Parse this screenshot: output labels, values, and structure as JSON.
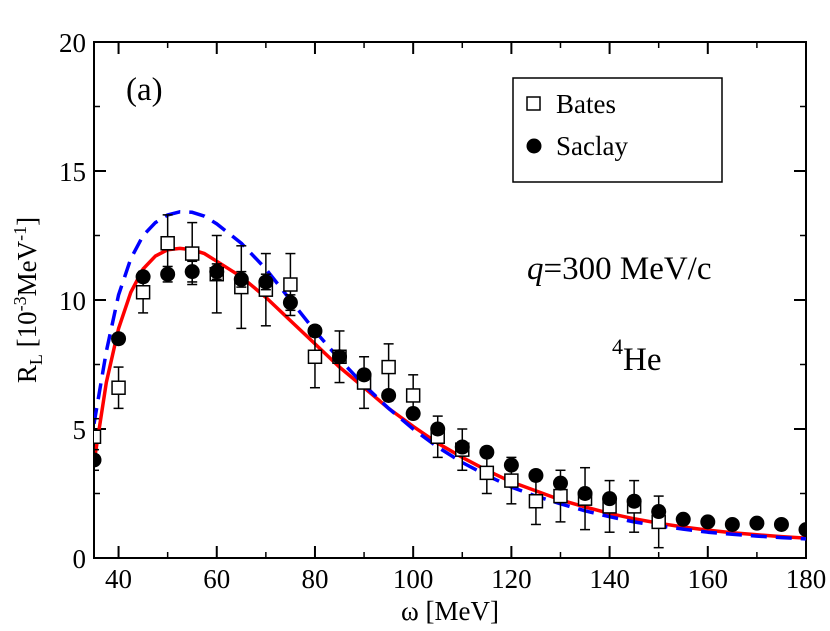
{
  "chart_data": {
    "type": "scatter",
    "panel_label": "(a)",
    "xlabel": "ω  [MeV]",
    "ylabel": {
      "base": "R",
      "sub": "L",
      "unit_open": " [10",
      "exp1": "-3",
      "unit_mid": "MeV",
      "exp2": "-1",
      "unit_close": "]"
    },
    "xlim": [
      35,
      180
    ],
    "ylim": [
      0,
      20
    ],
    "xticks": [
      40,
      60,
      80,
      100,
      120,
      140,
      160,
      180
    ],
    "yticks": [
      0,
      5,
      10,
      15,
      20
    ],
    "legend_position": "top-right",
    "annotations": {
      "q_italic": "q",
      "q_rest": "=300 MeV/c",
      "nucleus_mass": "4",
      "nucleus_symbol": "He"
    },
    "series": [
      {
        "name": "Bates",
        "marker": "open-square",
        "color": "#000000",
        "points": [
          {
            "x": 35,
            "y": 4.7,
            "err": 0.7
          },
          {
            "x": 40,
            "y": 6.6,
            "err": 0.8
          },
          {
            "x": 45,
            "y": 10.3,
            "err": 0.8
          },
          {
            "x": 50,
            "y": 12.2,
            "err": 1.1
          },
          {
            "x": 55,
            "y": 11.8,
            "err": 1.2
          },
          {
            "x": 60,
            "y": 11.0,
            "err": 1.5
          },
          {
            "x": 65,
            "y": 10.5,
            "err": 1.6
          },
          {
            "x": 70,
            "y": 10.4,
            "err": 1.4
          },
          {
            "x": 75,
            "y": 10.6,
            "err": 1.2
          },
          {
            "x": 80,
            "y": 7.8,
            "err": 1.2
          },
          {
            "x": 85,
            "y": 7.8,
            "err": 1.0
          },
          {
            "x": 90,
            "y": 6.8,
            "err": 1.0
          },
          {
            "x": 95,
            "y": 7.4,
            "err": 0.9
          },
          {
            "x": 100,
            "y": 6.3,
            "err": 0.8
          },
          {
            "x": 105,
            "y": 4.7,
            "err": 0.8
          },
          {
            "x": 110,
            "y": 4.2,
            "err": 0.8
          },
          {
            "x": 115,
            "y": 3.3,
            "err": 0.8
          },
          {
            "x": 120,
            "y": 3.0,
            "err": 0.9
          },
          {
            "x": 125,
            "y": 2.2,
            "err": 0.9
          },
          {
            "x": 130,
            "y": 2.4,
            "err": 1.0
          },
          {
            "x": 135,
            "y": 2.3,
            "err": 1.2
          },
          {
            "x": 140,
            "y": 2.0,
            "err": 1.0
          },
          {
            "x": 145,
            "y": 2.0,
            "err": 1.0
          },
          {
            "x": 150,
            "y": 1.4,
            "err": 1.0
          }
        ]
      },
      {
        "name": "Saclay",
        "marker": "filled-circle",
        "color": "#000000",
        "points": [
          {
            "x": 35,
            "y": 3.8,
            "err": 0.4
          },
          {
            "x": 40,
            "y": 8.5,
            "err": 0.2
          },
          {
            "x": 45,
            "y": 10.9,
            "err": 0.2
          },
          {
            "x": 50,
            "y": 11.0,
            "err": 0.3
          },
          {
            "x": 55,
            "y": 11.1,
            "err": 0.4
          },
          {
            "x": 60,
            "y": 11.1,
            "err": 0.3
          },
          {
            "x": 65,
            "y": 10.8,
            "err": 0.3
          },
          {
            "x": 70,
            "y": 10.7,
            "err": 0.3
          },
          {
            "x": 75,
            "y": 9.9,
            "err": 0.3
          },
          {
            "x": 80,
            "y": 8.8,
            "err": 0.2
          },
          {
            "x": 85,
            "y": 7.8,
            "err": 0.2
          },
          {
            "x": 90,
            "y": 7.1,
            "err": 0.2
          },
          {
            "x": 95,
            "y": 6.3,
            "err": 0.2
          },
          {
            "x": 100,
            "y": 5.6,
            "err": 0.2
          },
          {
            "x": 105,
            "y": 5.0,
            "err": 0.2
          },
          {
            "x": 110,
            "y": 4.3,
            "err": 0.2
          },
          {
            "x": 115,
            "y": 4.1,
            "err": 0.2
          },
          {
            "x": 120,
            "y": 3.6,
            "err": 0.2
          },
          {
            "x": 125,
            "y": 3.2,
            "err": 0.2
          },
          {
            "x": 130,
            "y": 2.9,
            "err": 0.2
          },
          {
            "x": 135,
            "y": 2.5,
            "err": 0.2
          },
          {
            "x": 140,
            "y": 2.3,
            "err": 0.2
          },
          {
            "x": 145,
            "y": 2.2,
            "err": 0.2
          },
          {
            "x": 150,
            "y": 1.8,
            "err": 0.2
          },
          {
            "x": 155,
            "y": 1.5,
            "err": 0.1
          },
          {
            "x": 160,
            "y": 1.4,
            "err": 0.1
          },
          {
            "x": 165,
            "y": 1.3,
            "err": 0.1
          },
          {
            "x": 170,
            "y": 1.35,
            "err": 0.1
          },
          {
            "x": 175,
            "y": 1.3,
            "err": 0.1
          },
          {
            "x": 180,
            "y": 1.1,
            "err": 0.1
          }
        ]
      }
    ],
    "curves": [
      {
        "style": "solid",
        "color": "#ff0000",
        "points": [
          [
            35,
            3.7
          ],
          [
            37.5,
            6.8
          ],
          [
            40,
            8.9
          ],
          [
            42.5,
            10.3
          ],
          [
            45,
            11.2
          ],
          [
            47.5,
            11.7
          ],
          [
            50,
            11.95
          ],
          [
            52.5,
            12.0
          ],
          [
            55,
            11.95
          ],
          [
            57.5,
            11.8
          ],
          [
            60,
            11.5
          ],
          [
            65,
            10.9
          ],
          [
            70,
            10.1
          ],
          [
            75,
            9.2
          ],
          [
            80,
            8.3
          ],
          [
            85,
            7.4
          ],
          [
            90,
            6.6
          ],
          [
            95,
            5.8
          ],
          [
            100,
            5.1
          ],
          [
            105,
            4.45
          ],
          [
            110,
            3.9
          ],
          [
            115,
            3.4
          ],
          [
            120,
            2.95
          ],
          [
            125,
            2.6
          ],
          [
            130,
            2.25
          ],
          [
            135,
            1.98
          ],
          [
            140,
            1.73
          ],
          [
            145,
            1.52
          ],
          [
            150,
            1.35
          ],
          [
            155,
            1.2
          ],
          [
            160,
            1.08
          ],
          [
            165,
            0.98
          ],
          [
            170,
            0.9
          ],
          [
            175,
            0.83
          ],
          [
            180,
            0.77
          ]
        ]
      },
      {
        "style": "dashed",
        "color": "#0000ff",
        "points": [
          [
            35,
            5.2
          ],
          [
            37.5,
            8.0
          ],
          [
            40,
            10.2
          ],
          [
            42.5,
            11.6
          ],
          [
            45,
            12.5
          ],
          [
            47.5,
            13.0
          ],
          [
            50,
            13.3
          ],
          [
            52.5,
            13.42
          ],
          [
            55,
            13.4
          ],
          [
            57.5,
            13.25
          ],
          [
            60,
            12.95
          ],
          [
            65,
            12.2
          ],
          [
            70,
            11.2
          ],
          [
            75,
            10.0
          ],
          [
            80,
            8.8
          ],
          [
            85,
            7.7
          ],
          [
            90,
            6.7
          ],
          [
            95,
            5.8
          ],
          [
            100,
            5.0
          ],
          [
            105,
            4.3
          ],
          [
            110,
            3.7
          ],
          [
            115,
            3.2
          ],
          [
            120,
            2.75
          ],
          [
            125,
            2.4
          ],
          [
            130,
            2.1
          ],
          [
            135,
            1.83
          ],
          [
            140,
            1.6
          ],
          [
            145,
            1.4
          ],
          [
            150,
            1.25
          ],
          [
            155,
            1.12
          ],
          [
            160,
            1.0
          ],
          [
            165,
            0.92
          ],
          [
            170,
            0.85
          ],
          [
            175,
            0.79
          ],
          [
            180,
            0.74
          ]
        ]
      }
    ]
  }
}
